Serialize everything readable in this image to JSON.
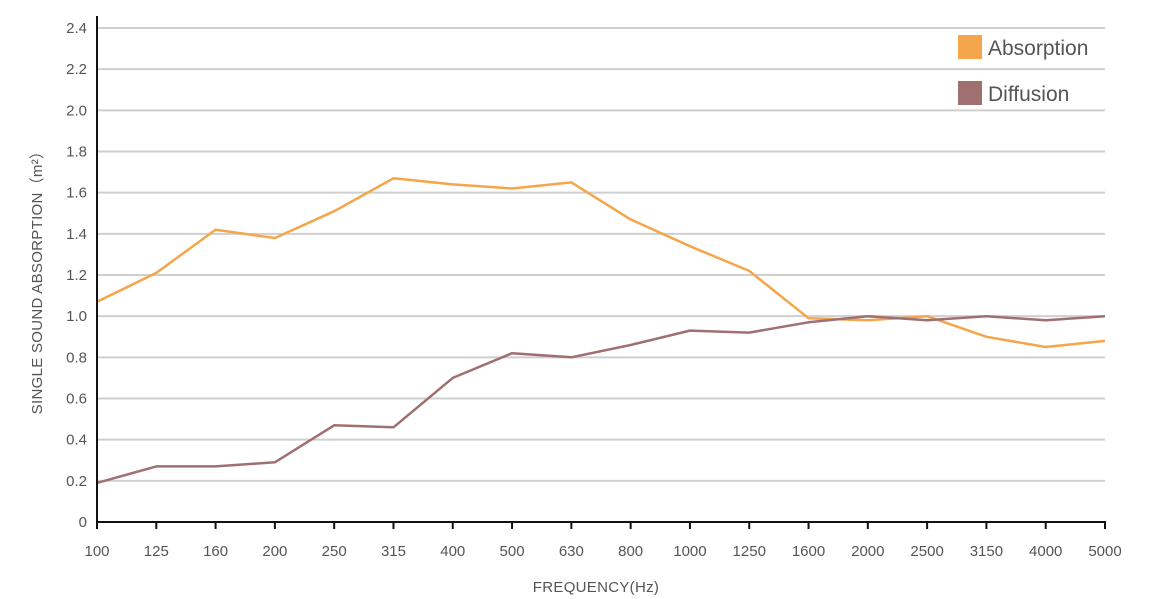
{
  "chart_data": {
    "type": "line",
    "categories": [
      "100",
      "125",
      "160",
      "200",
      "250",
      "315",
      "400",
      "500",
      "630",
      "800",
      "1000",
      "1250",
      "1600",
      "2000",
      "2500",
      "3150",
      "4000",
      "5000"
    ],
    "series": [
      {
        "name": "Absorption",
        "color": "#f5a54a",
        "values": [
          1.07,
          1.21,
          1.42,
          1.38,
          1.51,
          1.67,
          1.64,
          1.62,
          1.65,
          1.47,
          1.34,
          1.22,
          0.99,
          0.98,
          1.0,
          0.9,
          0.85,
          0.88
        ]
      },
      {
        "name": "Diffusion",
        "color": "#a07070",
        "values": [
          0.19,
          0.27,
          0.27,
          0.29,
          0.47,
          0.46,
          0.7,
          0.82,
          0.8,
          0.86,
          0.93,
          0.92,
          0.97,
          1.0,
          0.98,
          1.0,
          0.98,
          1.0
        ]
      }
    ],
    "ylim": [
      0,
      2.4
    ],
    "yticks": [
      "0",
      "0.2",
      "0.4",
      "0.6",
      "0.8",
      "1.0",
      "1.2",
      "1.4",
      "1.6",
      "1.8",
      "2.0",
      "2.2",
      "2.4"
    ],
    "xlabel": "FREQUENCY(Hz)",
    "ylabel": "SINGLE SOUND ABSORPTION（m²）",
    "grid": true,
    "legend_position": "top-right",
    "gridline_color": "#cfcfcf",
    "axis_color": "#111111"
  }
}
